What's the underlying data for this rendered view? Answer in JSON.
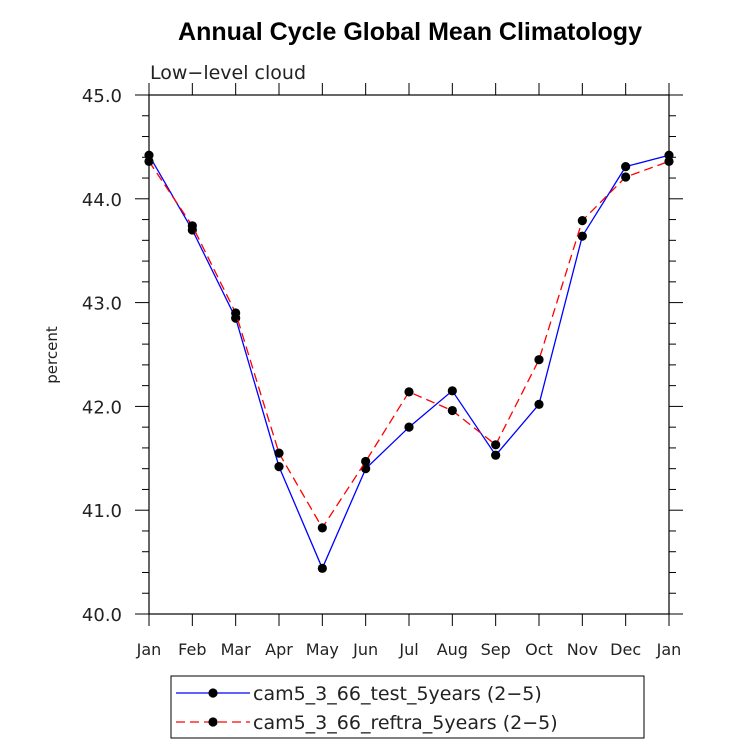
{
  "chart_data": {
    "type": "line",
    "title": "Annual Cycle Global Mean Climatology",
    "subtitle": "Low−level cloud",
    "ylabel": "percent",
    "xlabel": "",
    "ylim": [
      40.0,
      45.0
    ],
    "y_ticks": [
      "40.0",
      "41.0",
      "42.0",
      "43.0",
      "44.0",
      "45.0"
    ],
    "categories": [
      "Jan",
      "Feb",
      "Mar",
      "Apr",
      "May",
      "Jun",
      "Jul",
      "Aug",
      "Sep",
      "Oct",
      "Nov",
      "Dec",
      "Jan"
    ],
    "grid": false,
    "legend_position": "bottom",
    "series": [
      {
        "name": "cam5_3_66_test_5years (2−5)",
        "color": "#0000ff",
        "line_style": "solid",
        "marker": "filled-circle",
        "values": [
          44.42,
          43.7,
          42.85,
          41.42,
          40.44,
          41.4,
          41.8,
          42.15,
          41.53,
          42.02,
          43.64,
          44.31,
          44.42
        ]
      },
      {
        "name": "cam5_3_66_reftra_5years (2−5)",
        "color": "#ff0000",
        "line_style": "dashed",
        "marker": "filled-circle",
        "values": [
          44.36,
          43.74,
          42.9,
          41.55,
          40.83,
          41.47,
          42.14,
          41.96,
          41.63,
          42.45,
          43.79,
          44.21,
          44.36
        ]
      }
    ]
  }
}
